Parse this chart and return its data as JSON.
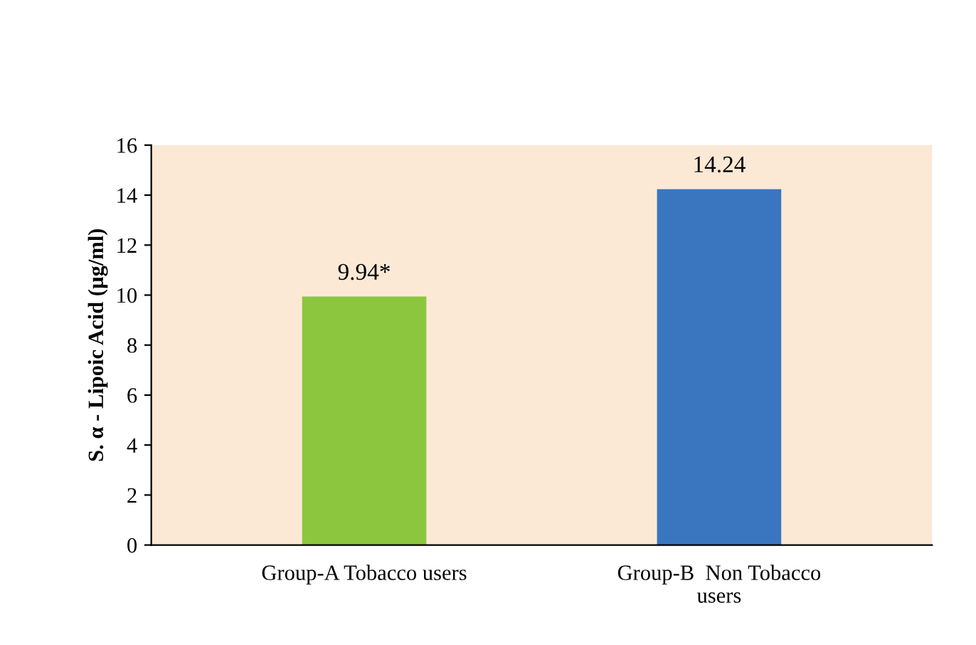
{
  "chart_data": {
    "type": "bar",
    "categories": [
      "Group-A Tobacco users",
      "Group-B  Non Tobacco\nusers"
    ],
    "values": [
      9.94,
      14.24
    ],
    "colors": [
      "#8cc63e",
      "#3a76bf"
    ],
    "value_labels": [
      "9.94*",
      "14.24"
    ],
    "ylabel": "S. α - Lipoic Acid (µg/ml)",
    "ylim": [
      0,
      16
    ],
    "yticks": [
      0,
      2,
      4,
      6,
      8,
      10,
      12,
      14,
      16
    ],
    "grid": false,
    "legend": false
  }
}
